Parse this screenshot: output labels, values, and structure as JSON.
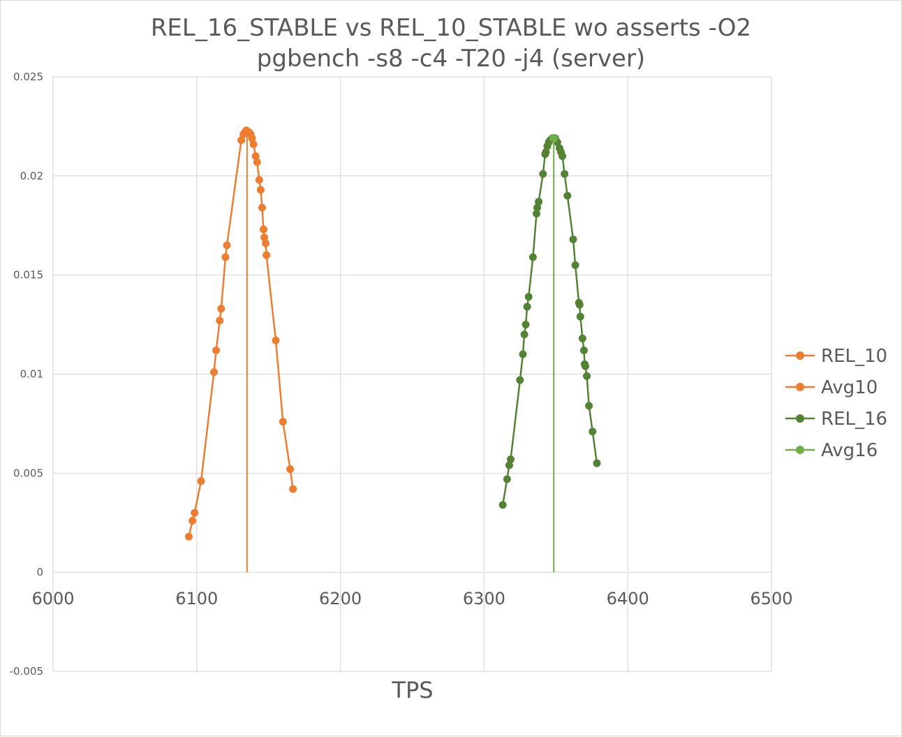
{
  "chart_data": {
    "type": "scatter",
    "title_lines": [
      "REL_16_STABLE vs REL_10_STABLE wo asserts -O2",
      "pgbench -s8 -c4 -T20 -j4    (server)"
    ],
    "xlabel": "TPS",
    "ylabel": "",
    "xlim": [
      6000,
      6500
    ],
    "ylim": [
      -0.005,
      0.025
    ],
    "x_ticks": [
      "6000",
      "6100",
      "6200",
      "6300",
      "6400",
      "6500"
    ],
    "y_ticks": [
      "0.025",
      "0.02",
      "0.015",
      "0.01",
      "0.005",
      "0",
      "-0.005"
    ],
    "grid": true,
    "legend_position": "right",
    "series": [
      {
        "name": "REL_10",
        "color": "#ed7d31",
        "style": "line-markers",
        "points": [
          [
            6094.5,
            0.0018
          ],
          [
            6097,
            0.0026
          ],
          [
            6098.5,
            0.003
          ],
          [
            6103,
            0.0046
          ],
          [
            6112,
            0.0101
          ],
          [
            6113.5,
            0.0112
          ],
          [
            6116,
            0.0127
          ],
          [
            6117,
            0.0133
          ],
          [
            6120,
            0.0159
          ],
          [
            6121,
            0.0165
          ],
          [
            6131,
            0.0218
          ],
          [
            6132.5,
            0.0221
          ],
          [
            6133.5,
            0.0222
          ],
          [
            6134.5,
            0.0223
          ],
          [
            6135.5,
            0.0222
          ],
          [
            6136.5,
            0.0222
          ],
          [
            6137.5,
            0.0221
          ],
          [
            6138.5,
            0.0219
          ],
          [
            6139.5,
            0.0216
          ],
          [
            6141,
            0.021
          ],
          [
            6142,
            0.0207
          ],
          [
            6143.5,
            0.0198
          ],
          [
            6144.5,
            0.0193
          ],
          [
            6145.5,
            0.0184
          ],
          [
            6146.5,
            0.0173
          ],
          [
            6147,
            0.0169
          ],
          [
            6148,
            0.0166
          ],
          [
            6148.5,
            0.016
          ],
          [
            6155,
            0.0117
          ],
          [
            6160,
            0.0076
          ],
          [
            6165,
            0.0052
          ],
          [
            6167,
            0.0042
          ]
        ]
      },
      {
        "name": "Avg10",
        "color": "#ed7d31",
        "style": "drop-line",
        "points": [
          [
            6135,
            0.0222
          ],
          [
            6135,
            0
          ]
        ]
      },
      {
        "name": "REL_16",
        "color": "#548235",
        "style": "line-markers",
        "points": [
          [
            6313,
            0.0034
          ],
          [
            6316,
            0.0047
          ],
          [
            6317.5,
            0.0054
          ],
          [
            6318.5,
            0.0057
          ],
          [
            6325,
            0.0097
          ],
          [
            6327,
            0.011
          ],
          [
            6328,
            0.012
          ],
          [
            6329,
            0.0125
          ],
          [
            6330,
            0.0134
          ],
          [
            6331,
            0.0139
          ],
          [
            6334,
            0.0159
          ],
          [
            6336.5,
            0.0181
          ],
          [
            6337,
            0.0184
          ],
          [
            6338,
            0.0187
          ],
          [
            6341,
            0.0201
          ],
          [
            6342.5,
            0.0211
          ],
          [
            6343,
            0.0212
          ],
          [
            6344,
            0.0215
          ],
          [
            6345,
            0.0217
          ],
          [
            6346,
            0.0218
          ],
          [
            6347.5,
            0.0219
          ],
          [
            6349.5,
            0.0219
          ],
          [
            6351,
            0.0217
          ],
          [
            6352.5,
            0.0214
          ],
          [
            6353.5,
            0.0212
          ],
          [
            6354.5,
            0.021
          ],
          [
            6356,
            0.0201
          ],
          [
            6358,
            0.019
          ],
          [
            6362,
            0.0168
          ],
          [
            6363.5,
            0.0155
          ],
          [
            6366,
            0.0136
          ],
          [
            6366.5,
            0.0135
          ],
          [
            6367,
            0.0129
          ],
          [
            6368.5,
            0.0118
          ],
          [
            6369.5,
            0.0112
          ],
          [
            6370,
            0.0105
          ],
          [
            6370.5,
            0.0104
          ],
          [
            6371.5,
            0.0099
          ],
          [
            6373,
            0.0084
          ],
          [
            6375.5,
            0.0071
          ],
          [
            6378.5,
            0.0055
          ]
        ]
      },
      {
        "name": "Avg16",
        "color": "#70ad47",
        "style": "drop-line",
        "points": [
          [
            6348.5,
            0.0219
          ],
          [
            6348.5,
            0
          ]
        ]
      }
    ]
  }
}
